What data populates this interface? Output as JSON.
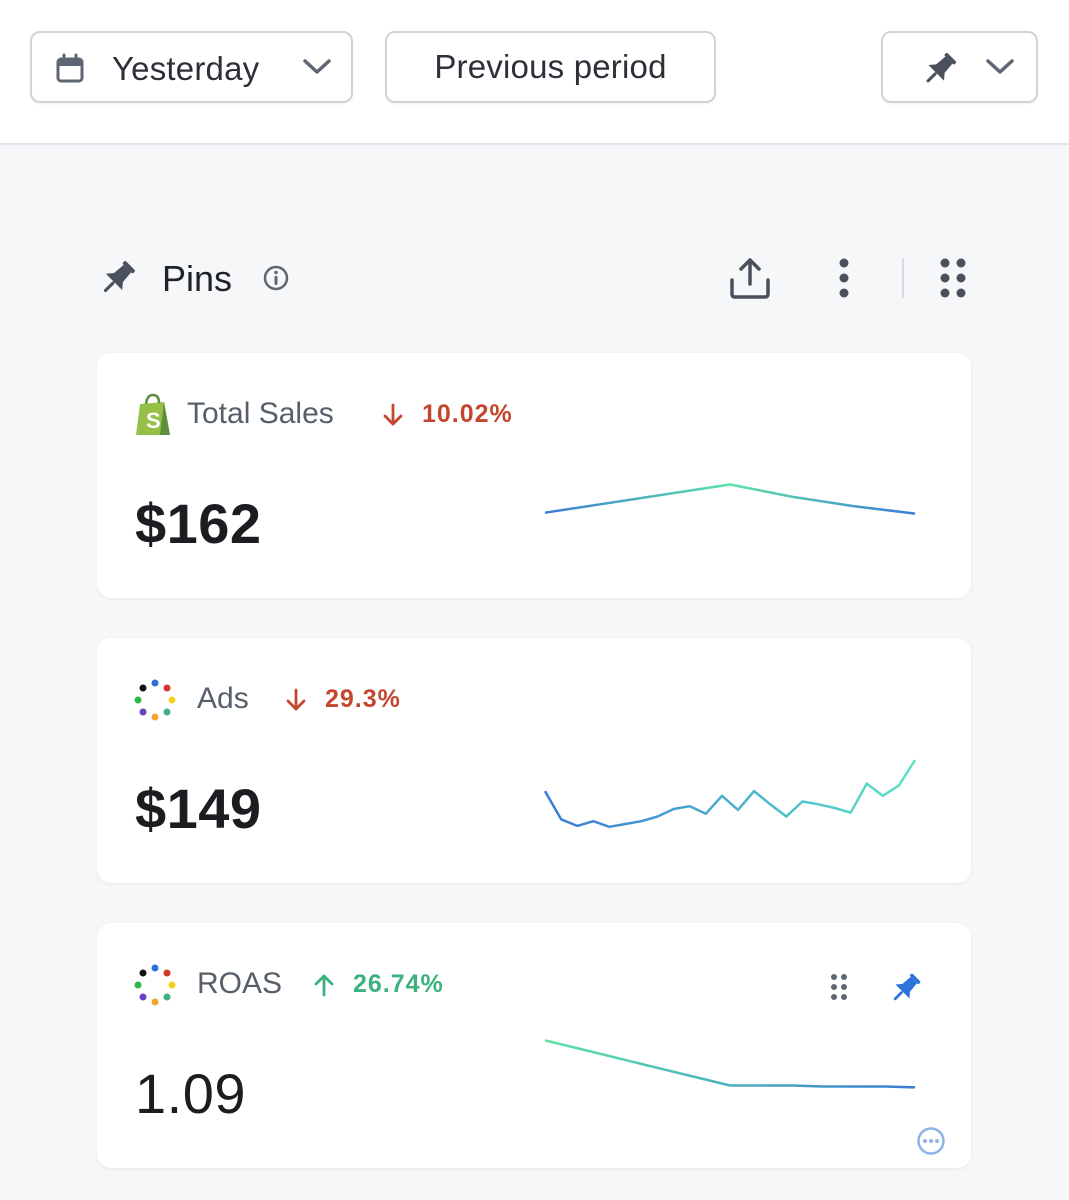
{
  "toolbar": {
    "date_range_label": "Yesterday",
    "compare_label": "Previous period"
  },
  "section": {
    "title": "Pins"
  },
  "cards": [
    {
      "title": "Total Sales",
      "source_icon": "shopify-bag-icon",
      "delta": "10.02%",
      "delta_direction": "down",
      "value": "$162",
      "sparkline": [
        0.45,
        0.55,
        0.65,
        0.75,
        0.62,
        0.52,
        0.44
      ],
      "sparkline_colors": [
        "#3a7bd5",
        "#5ee3a8"
      ]
    },
    {
      "title": "Ads",
      "source_icon": "triple-whale-dots-icon",
      "delta": "29.3%",
      "delta_direction": "down",
      "value": "$149",
      "sparkline": [
        0.52,
        0.22,
        0.15,
        0.2,
        0.14,
        0.17,
        0.2,
        0.25,
        0.33,
        0.36,
        0.28,
        0.47,
        0.32,
        0.52,
        0.38,
        0.25,
        0.41,
        0.38,
        0.34,
        0.29,
        0.6,
        0.47,
        0.58,
        0.85
      ],
      "sparkline_colors": [
        "#3a7bd5",
        "#5ee3c5"
      ]
    },
    {
      "title": "ROAS",
      "source_icon": "triple-whale-dots-icon",
      "delta": "26.74%",
      "delta_direction": "up",
      "value": "1.09",
      "sparkline": [
        0.9,
        0.82,
        0.74,
        0.66,
        0.58,
        0.5,
        0.42,
        0.42,
        0.42,
        0.41,
        0.41,
        0.41,
        0.4
      ],
      "sparkline_colors": [
        "#5ee3a8",
        "#3a7bd5"
      ]
    }
  ],
  "colors": {
    "down": "#c4462f",
    "up": "#3cb37f",
    "pin_active": "#2d74da"
  }
}
